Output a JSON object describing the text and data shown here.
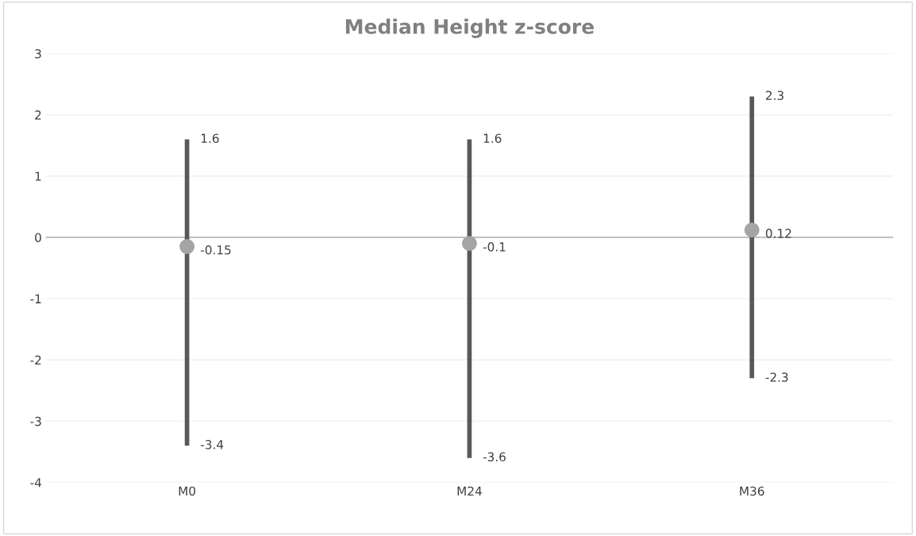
{
  "chart_data": {
    "type": "bar",
    "title": "Median Height z-score",
    "categories": [
      "M0",
      "M24",
      "M36"
    ],
    "series": [
      {
        "color": "#595959",
        "base": [
          -3.4,
          -3.6,
          -2.3
        ],
        "values": [
          5.0,
          5.2,
          4.6
        ]
      },
      {
        "type": "scatter",
        "color": "#a5a5a5",
        "values": [
          -0.15,
          -0.1,
          0.12
        ],
        "value_labels": [
          "-0.15",
          "-0.1",
          "0.12"
        ]
      }
    ],
    "annotations": [
      {
        "text": "1.6",
        "x": "M0",
        "y": 1.6
      },
      {
        "text": "-3.4",
        "x": "M0",
        "y": -3.4
      },
      {
        "text": "1.6",
        "x": "M24",
        "y": 1.6
      },
      {
        "text": "-3.6",
        "x": "M24",
        "y": -3.6
      },
      {
        "text": "2.3",
        "x": "M36",
        "y": 2.3
      },
      {
        "text": "-2.3",
        "x": "M36",
        "y": -2.3
      }
    ],
    "ylim": [
      -4,
      3
    ],
    "yticks": [
      -4,
      -3,
      -2,
      -1,
      0,
      1,
      2,
      3
    ],
    "grid": "y",
    "legend": false
  }
}
